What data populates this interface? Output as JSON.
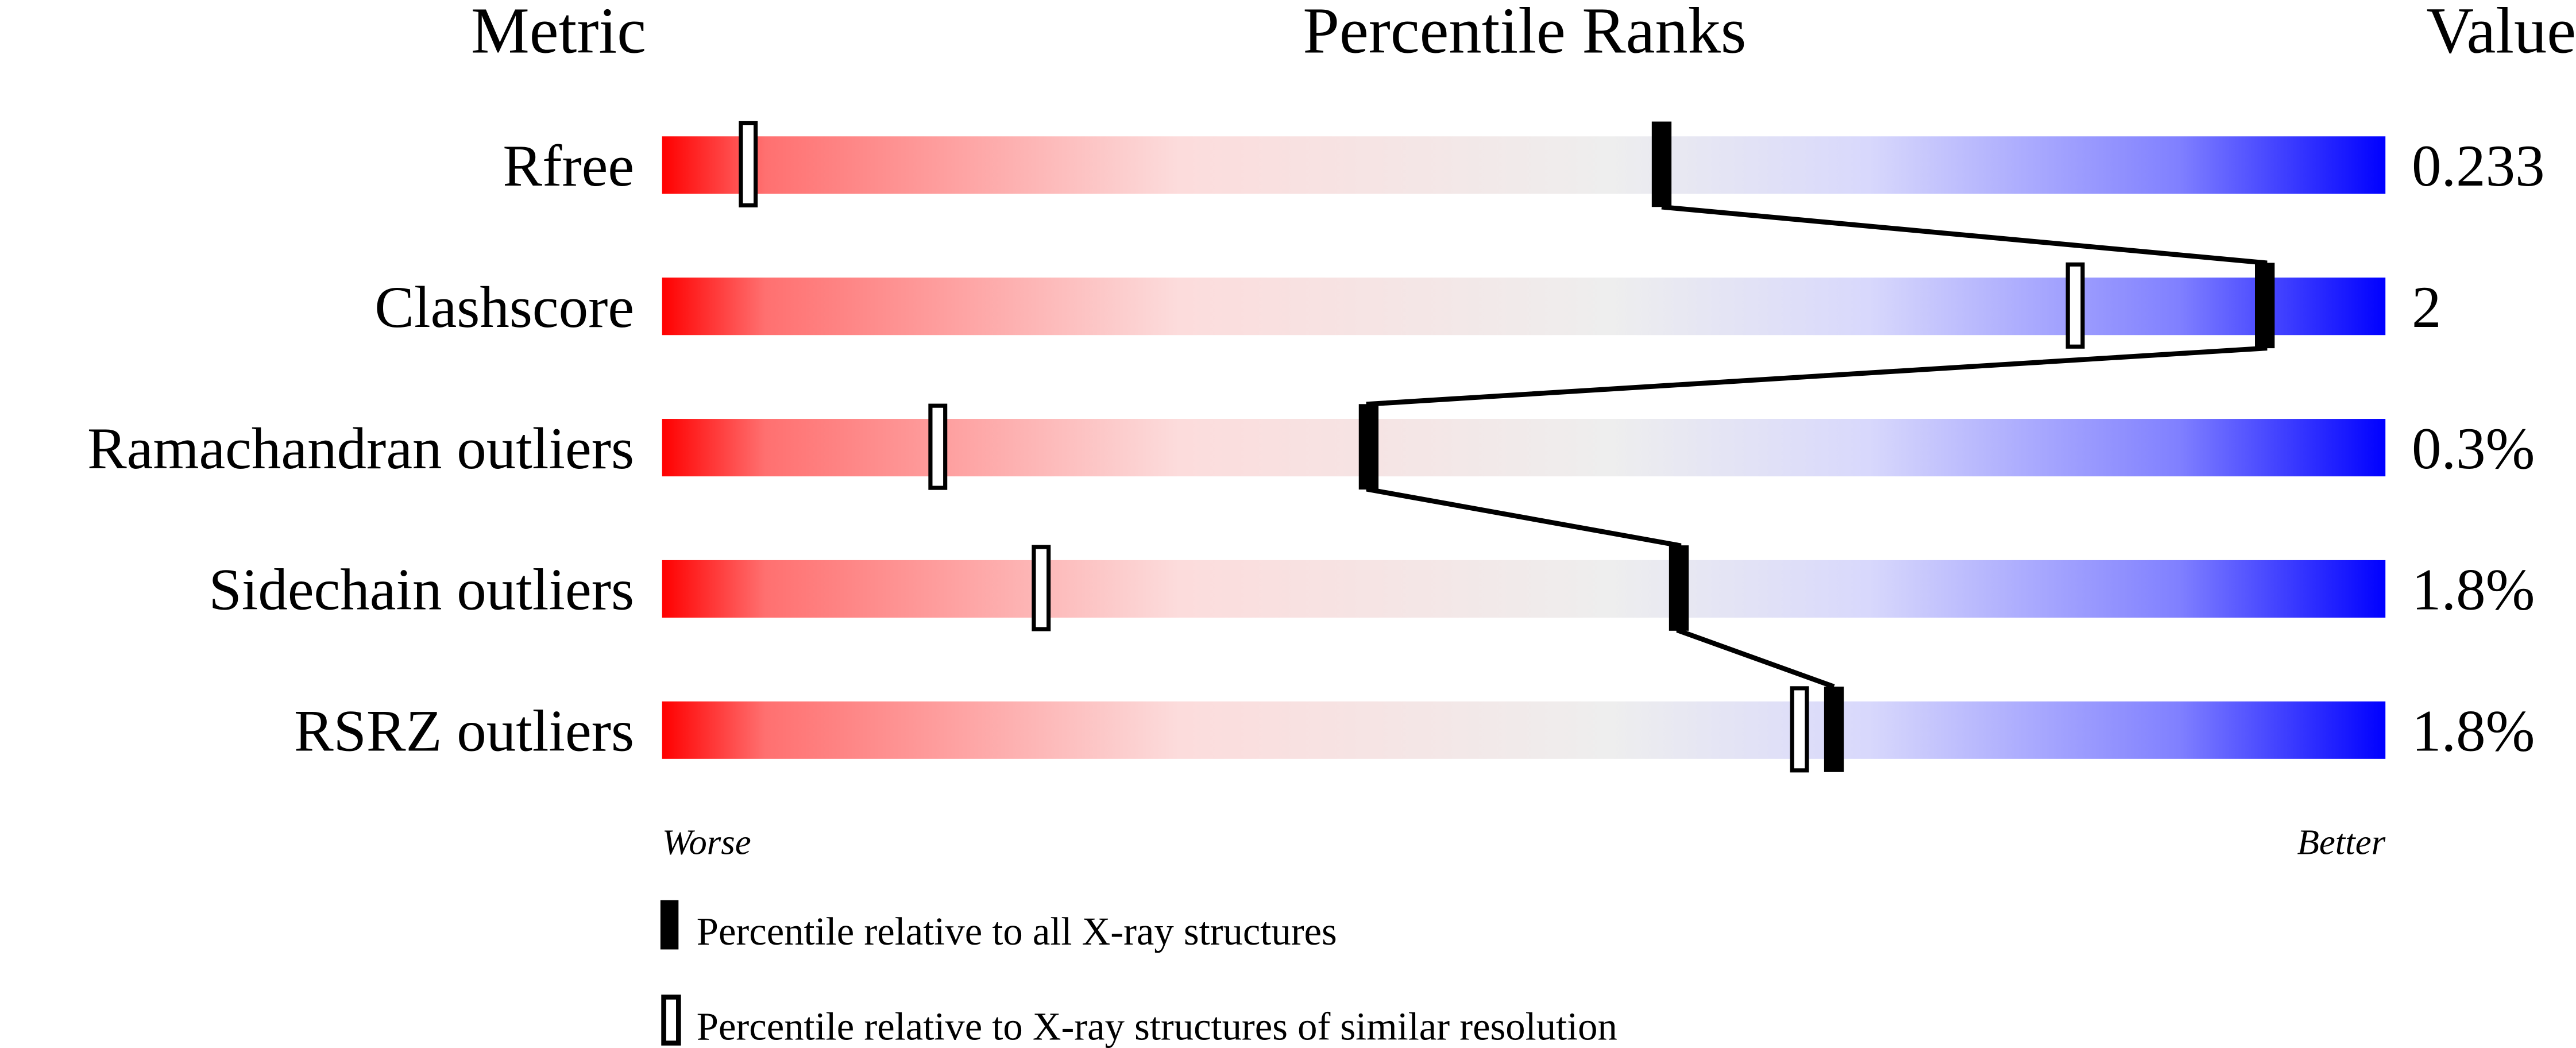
{
  "chart_data": {
    "type": "bar",
    "headers": {
      "metric": "Metric",
      "ranks": "Percentile Ranks",
      "value": "Value"
    },
    "axis_labels": {
      "left": "Worse",
      "right": "Better"
    },
    "xlim": [
      0,
      100
    ],
    "gradient_colors": [
      "#ff0000",
      "#ff7070",
      "#fcdcdc",
      "#eeeeee",
      "#d8d8fc",
      "#8080ff",
      "#0000ff"
    ],
    "rows": [
      {
        "metric": "Rfree",
        "value": "0.233",
        "percentile_all": 58,
        "percentile_similar": 5
      },
      {
        "metric": "Clashscore",
        "value": "2",
        "percentile_all": 93,
        "percentile_similar": 82
      },
      {
        "metric": "Ramachandran outliers",
        "value": "0.3%",
        "percentile_all": 41,
        "percentile_similar": 16
      },
      {
        "metric": "Sidechain outliers",
        "value": "1.8%",
        "percentile_all": 59,
        "percentile_similar": 22
      },
      {
        "metric": "RSRZ outliers",
        "value": "1.8%",
        "percentile_all": 68,
        "percentile_similar": 66
      }
    ],
    "legend": [
      {
        "marker": "filled",
        "label": "Percentile relative to all X-ray structures"
      },
      {
        "marker": "open",
        "label": "Percentile relative to X-ray structures of similar resolution"
      }
    ]
  }
}
